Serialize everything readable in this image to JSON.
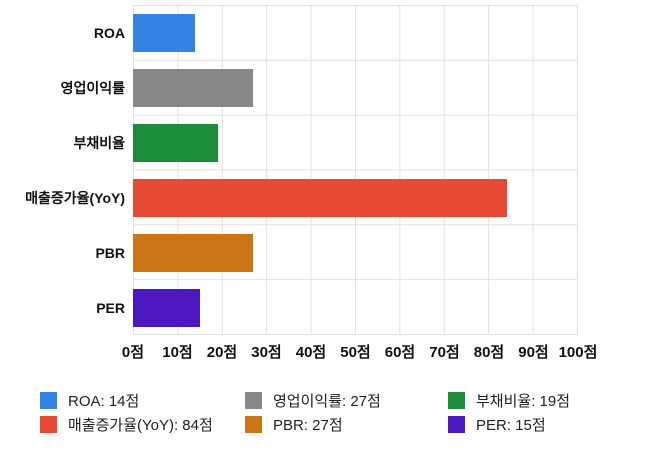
{
  "chart_data": {
    "type": "bar",
    "orientation": "horizontal",
    "title": "",
    "xlabel": "",
    "ylabel": "",
    "unit": "점",
    "categories": [
      "ROA",
      "영업이익률",
      "부채비율",
      "매출증가율(YoY)",
      "PBR",
      "PER"
    ],
    "values": [
      14,
      27,
      19,
      84,
      27,
      15
    ],
    "colors": [
      "#3584e4",
      "#878787",
      "#1d8c3b",
      "#e84b35",
      "#c97518",
      "#4c17bf"
    ],
    "xlim": [
      0,
      100
    ],
    "x_ticks": [
      0,
      10,
      20,
      30,
      40,
      50,
      60,
      70,
      80,
      90,
      100
    ],
    "x_tick_labels": [
      "0점",
      "10점",
      "20점",
      "30점",
      "40점",
      "50점",
      "60점",
      "70점",
      "80점",
      "90점",
      "100점"
    ],
    "grid": true,
    "legend_position": "bottom",
    "legend_labels": [
      "ROA: 14점",
      "영업이익률: 27점",
      "부채비율: 19점",
      "매출증가율(YoY): 84점",
      "PBR: 27점",
      "PER: 15점"
    ]
  }
}
